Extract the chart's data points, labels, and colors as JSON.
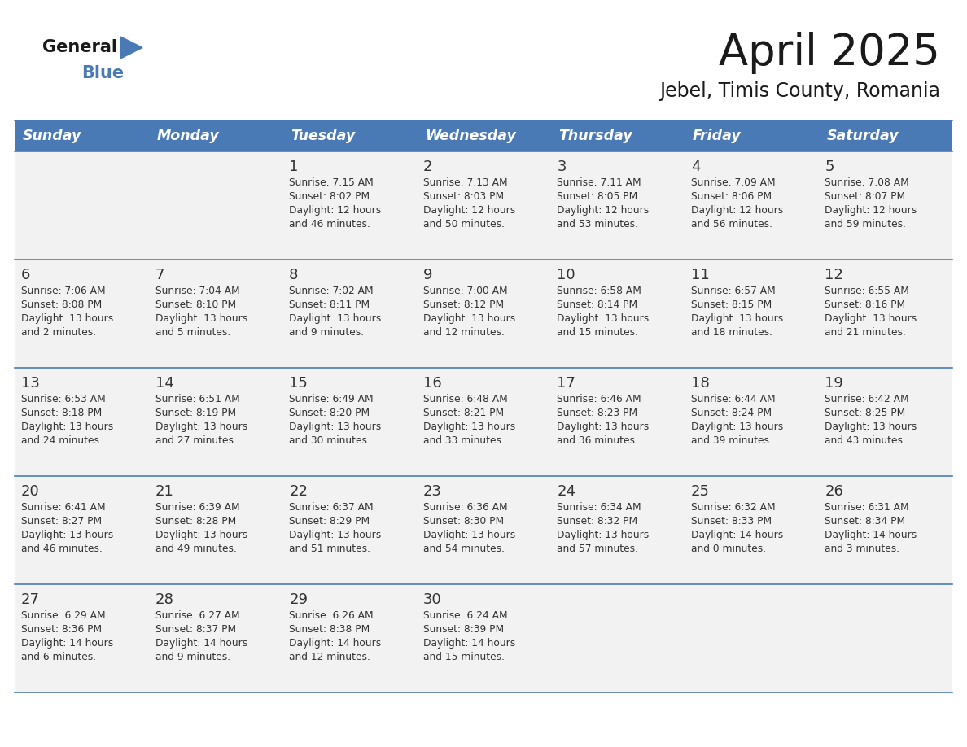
{
  "title": "April 2025",
  "subtitle": "Jebel, Timis County, Romania",
  "header_color": "#4a7ab5",
  "header_text_color": "#ffffff",
  "cell_bg_color": "#f2f2f2",
  "day_headers": [
    "Sunday",
    "Monday",
    "Tuesday",
    "Wednesday",
    "Thursday",
    "Friday",
    "Saturday"
  ],
  "grid_line_color": "#4a7ab5",
  "text_color": "#333333",
  "weeks": [
    [
      {
        "day": "",
        "sunrise": "",
        "sunset": "",
        "daylight": ""
      },
      {
        "day": "",
        "sunrise": "",
        "sunset": "",
        "daylight": ""
      },
      {
        "day": "1",
        "sunrise": "Sunrise: 7:15 AM",
        "sunset": "Sunset: 8:02 PM",
        "daylight": "Daylight: 12 hours\nand 46 minutes."
      },
      {
        "day": "2",
        "sunrise": "Sunrise: 7:13 AM",
        "sunset": "Sunset: 8:03 PM",
        "daylight": "Daylight: 12 hours\nand 50 minutes."
      },
      {
        "day": "3",
        "sunrise": "Sunrise: 7:11 AM",
        "sunset": "Sunset: 8:05 PM",
        "daylight": "Daylight: 12 hours\nand 53 minutes."
      },
      {
        "day": "4",
        "sunrise": "Sunrise: 7:09 AM",
        "sunset": "Sunset: 8:06 PM",
        "daylight": "Daylight: 12 hours\nand 56 minutes."
      },
      {
        "day": "5",
        "sunrise": "Sunrise: 7:08 AM",
        "sunset": "Sunset: 8:07 PM",
        "daylight": "Daylight: 12 hours\nand 59 minutes."
      }
    ],
    [
      {
        "day": "6",
        "sunrise": "Sunrise: 7:06 AM",
        "sunset": "Sunset: 8:08 PM",
        "daylight": "Daylight: 13 hours\nand 2 minutes."
      },
      {
        "day": "7",
        "sunrise": "Sunrise: 7:04 AM",
        "sunset": "Sunset: 8:10 PM",
        "daylight": "Daylight: 13 hours\nand 5 minutes."
      },
      {
        "day": "8",
        "sunrise": "Sunrise: 7:02 AM",
        "sunset": "Sunset: 8:11 PM",
        "daylight": "Daylight: 13 hours\nand 9 minutes."
      },
      {
        "day": "9",
        "sunrise": "Sunrise: 7:00 AM",
        "sunset": "Sunset: 8:12 PM",
        "daylight": "Daylight: 13 hours\nand 12 minutes."
      },
      {
        "day": "10",
        "sunrise": "Sunrise: 6:58 AM",
        "sunset": "Sunset: 8:14 PM",
        "daylight": "Daylight: 13 hours\nand 15 minutes."
      },
      {
        "day": "11",
        "sunrise": "Sunrise: 6:57 AM",
        "sunset": "Sunset: 8:15 PM",
        "daylight": "Daylight: 13 hours\nand 18 minutes."
      },
      {
        "day": "12",
        "sunrise": "Sunrise: 6:55 AM",
        "sunset": "Sunset: 8:16 PM",
        "daylight": "Daylight: 13 hours\nand 21 minutes."
      }
    ],
    [
      {
        "day": "13",
        "sunrise": "Sunrise: 6:53 AM",
        "sunset": "Sunset: 8:18 PM",
        "daylight": "Daylight: 13 hours\nand 24 minutes."
      },
      {
        "day": "14",
        "sunrise": "Sunrise: 6:51 AM",
        "sunset": "Sunset: 8:19 PM",
        "daylight": "Daylight: 13 hours\nand 27 minutes."
      },
      {
        "day": "15",
        "sunrise": "Sunrise: 6:49 AM",
        "sunset": "Sunset: 8:20 PM",
        "daylight": "Daylight: 13 hours\nand 30 minutes."
      },
      {
        "day": "16",
        "sunrise": "Sunrise: 6:48 AM",
        "sunset": "Sunset: 8:21 PM",
        "daylight": "Daylight: 13 hours\nand 33 minutes."
      },
      {
        "day": "17",
        "sunrise": "Sunrise: 6:46 AM",
        "sunset": "Sunset: 8:23 PM",
        "daylight": "Daylight: 13 hours\nand 36 minutes."
      },
      {
        "day": "18",
        "sunrise": "Sunrise: 6:44 AM",
        "sunset": "Sunset: 8:24 PM",
        "daylight": "Daylight: 13 hours\nand 39 minutes."
      },
      {
        "day": "19",
        "sunrise": "Sunrise: 6:42 AM",
        "sunset": "Sunset: 8:25 PM",
        "daylight": "Daylight: 13 hours\nand 43 minutes."
      }
    ],
    [
      {
        "day": "20",
        "sunrise": "Sunrise: 6:41 AM",
        "sunset": "Sunset: 8:27 PM",
        "daylight": "Daylight: 13 hours\nand 46 minutes."
      },
      {
        "day": "21",
        "sunrise": "Sunrise: 6:39 AM",
        "sunset": "Sunset: 8:28 PM",
        "daylight": "Daylight: 13 hours\nand 49 minutes."
      },
      {
        "day": "22",
        "sunrise": "Sunrise: 6:37 AM",
        "sunset": "Sunset: 8:29 PM",
        "daylight": "Daylight: 13 hours\nand 51 minutes."
      },
      {
        "day": "23",
        "sunrise": "Sunrise: 6:36 AM",
        "sunset": "Sunset: 8:30 PM",
        "daylight": "Daylight: 13 hours\nand 54 minutes."
      },
      {
        "day": "24",
        "sunrise": "Sunrise: 6:34 AM",
        "sunset": "Sunset: 8:32 PM",
        "daylight": "Daylight: 13 hours\nand 57 minutes."
      },
      {
        "day": "25",
        "sunrise": "Sunrise: 6:32 AM",
        "sunset": "Sunset: 8:33 PM",
        "daylight": "Daylight: 14 hours\nand 0 minutes."
      },
      {
        "day": "26",
        "sunrise": "Sunrise: 6:31 AM",
        "sunset": "Sunset: 8:34 PM",
        "daylight": "Daylight: 14 hours\nand 3 minutes."
      }
    ],
    [
      {
        "day": "27",
        "sunrise": "Sunrise: 6:29 AM",
        "sunset": "Sunset: 8:36 PM",
        "daylight": "Daylight: 14 hours\nand 6 minutes."
      },
      {
        "day": "28",
        "sunrise": "Sunrise: 6:27 AM",
        "sunset": "Sunset: 8:37 PM",
        "daylight": "Daylight: 14 hours\nand 9 minutes."
      },
      {
        "day": "29",
        "sunrise": "Sunrise: 6:26 AM",
        "sunset": "Sunset: 8:38 PM",
        "daylight": "Daylight: 14 hours\nand 12 minutes."
      },
      {
        "day": "30",
        "sunrise": "Sunrise: 6:24 AM",
        "sunset": "Sunset: 8:39 PM",
        "daylight": "Daylight: 14 hours\nand 15 minutes."
      },
      {
        "day": "",
        "sunrise": "",
        "sunset": "",
        "daylight": ""
      },
      {
        "day": "",
        "sunrise": "",
        "sunset": "",
        "daylight": ""
      },
      {
        "day": "",
        "sunrise": "",
        "sunset": "",
        "daylight": ""
      }
    ]
  ]
}
